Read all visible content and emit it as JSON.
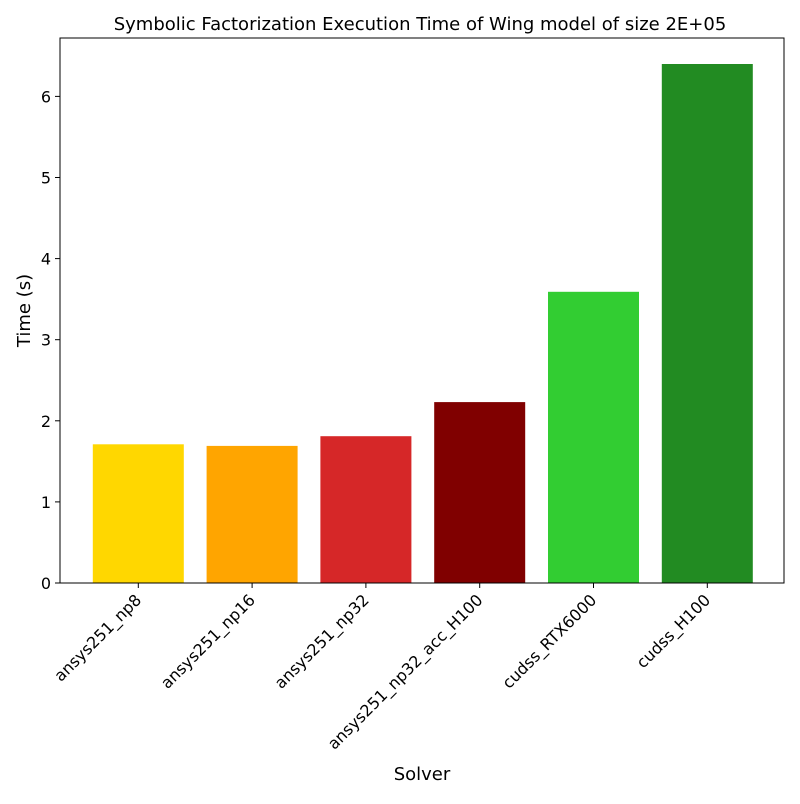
{
  "chart_data": {
    "type": "bar",
    "title": "Symbolic Factorization Execution Time of Wing model of size 2E+05",
    "xlabel": "Solver",
    "ylabel": "Time (s)",
    "categories": [
      "ansys251_np8",
      "ansys251_np16",
      "ansys251_np32",
      "ansys251_np32_acc_H100",
      "cudss_RTX6000",
      "cudss_H100"
    ],
    "values": [
      1.71,
      1.69,
      1.81,
      2.23,
      3.59,
      6.4
    ],
    "colors": [
      "#ffd700",
      "#ffa500",
      "#d62728",
      "#800000",
      "#32cd32",
      "#228b22"
    ],
    "yticks": [
      "0",
      "1",
      "2",
      "3",
      "4",
      "5",
      "6"
    ],
    "ylim": [
      0,
      6.72
    ],
    "grid": false,
    "legend": "none"
  }
}
